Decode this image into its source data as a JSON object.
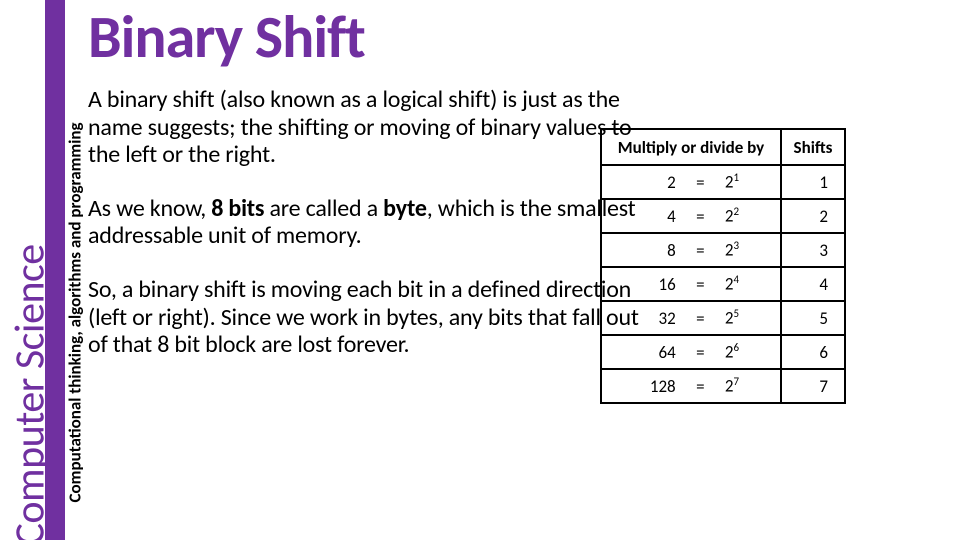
{
  "sidebar": {
    "main_label": "Computer Science",
    "sub_label": "Computational thinking, algorithms and programming",
    "strip_color": "#7030a0",
    "main_text_color": "#7030a0",
    "sub_text_color": "#000000"
  },
  "title": {
    "text": "Binary Shift",
    "color": "#7030a0",
    "fontsize": 60
  },
  "paragraphs": {
    "p1": "A binary shift (also known as a logical shift) is just as the name suggests; the shifting or moving of binary values to the left or the right.",
    "p2_pre": "As we know, ",
    "p2_bold1": "8 bits",
    "p2_mid": " are called a ",
    "p2_bold2": "byte",
    "p2_post": ", which is the smallest addressable unit of memory.",
    "p3": "So, a binary shift is moving each bit in a defined direction (left or right). Since we work in bytes, any bits that fall out of that 8 bit block are lost forever.",
    "font_size": 24,
    "text_color": "#000000"
  },
  "table": {
    "header1": "Multiply or divide by",
    "header2": "Shifts",
    "border_color": "#000000",
    "font_size": 17,
    "rows": [
      {
        "val": "2",
        "eq": "=",
        "base": "2",
        "exp": "1",
        "shift": "1"
      },
      {
        "val": "4",
        "eq": "=",
        "base": "2",
        "exp": "2",
        "shift": "2"
      },
      {
        "val": "8",
        "eq": "=",
        "base": "2",
        "exp": "3",
        "shift": "3"
      },
      {
        "val": "16",
        "eq": "=",
        "base": "2",
        "exp": "4",
        "shift": "4"
      },
      {
        "val": "32",
        "eq": "=",
        "base": "2",
        "exp": "5",
        "shift": "5"
      },
      {
        "val": "64",
        "eq": "=",
        "base": "2",
        "exp": "6",
        "shift": "6"
      },
      {
        "val": "128",
        "eq": "=",
        "base": "2",
        "exp": "7",
        "shift": "7"
      }
    ]
  }
}
